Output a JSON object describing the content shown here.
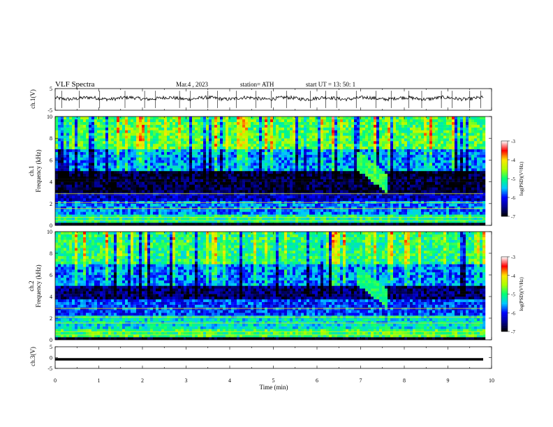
{
  "header": {
    "title": "VLF  Spectra",
    "date": "Mar.4  , 2023",
    "station": "station= ATH",
    "start": "start  UT  =   13: 50: 1"
  },
  "colorbar": {
    "label": "log(PSD)(V²/Hz)",
    "ticks": [
      "-3",
      "-4",
      "-5",
      "-6",
      "-7"
    ],
    "colors": [
      "#ffffff",
      "#ff0000",
      "#ffff00",
      "#00ff00",
      "#00ffff",
      "#0000ff",
      "#000000"
    ]
  },
  "chart_data": [
    {
      "type": "line",
      "name": "ch1-waveform",
      "ylabel": "ch.1(V)",
      "ylim": [
        -5,
        5
      ],
      "yticks": [
        "5",
        "-5"
      ],
      "xlim": [
        0,
        10
      ],
      "baseline_value": 0.5,
      "spike_times_min": [
        0.15,
        0.55,
        1.02,
        1.6,
        2.05,
        2.3,
        2.85,
        3.1,
        3.5,
        3.72,
        4.15,
        4.6,
        4.95,
        5.3,
        5.85,
        6.2,
        6.45,
        6.9,
        7.35,
        7.7,
        8.1,
        8.4,
        8.85,
        9.1,
        9.5,
        9.75
      ]
    },
    {
      "type": "heatmap",
      "name": "ch1-spectrogram",
      "ylabel": "ch.1\nFrequency  (kHz)",
      "ylim": [
        0,
        10
      ],
      "yticks": [
        "0",
        "2",
        "4",
        "6",
        "8",
        "10"
      ],
      "xlim": [
        0,
        10
      ],
      "log_psd_range": [
        -7,
        -3
      ],
      "bands": [
        {
          "f_low": 7.0,
          "f_high": 10.0,
          "log_psd": -4.8
        },
        {
          "f_low": 5.0,
          "f_high": 7.0,
          "log_psd": -5.6
        },
        {
          "f_low": 3.0,
          "f_high": 5.0,
          "log_psd": -6.8
        },
        {
          "f_low": 2.2,
          "f_high": 3.0,
          "log_psd": -6.3
        },
        {
          "f_low": 1.0,
          "f_high": 2.2,
          "log_psd": -5.7
        },
        {
          "f_low": 0.3,
          "f_high": 1.0,
          "log_psd": -5.1
        },
        {
          "f_low": 0.0,
          "f_high": 0.3,
          "log_psd": -7.0
        }
      ],
      "event": {
        "t_min": 6.9,
        "t_max": 7.6,
        "f_low": 3.8,
        "f_high": 6.0,
        "log_psd": -4.9
      }
    },
    {
      "type": "heatmap",
      "name": "ch2-spectrogram",
      "ylabel": "ch.2\nFrequency  (kHz)",
      "ylim": [
        0,
        10
      ],
      "yticks": [
        "0",
        "2",
        "4",
        "6",
        "8",
        "10"
      ],
      "xlim": [
        0,
        10
      ],
      "log_psd_range": [
        -7,
        -3
      ],
      "bands": [
        {
          "f_low": 7.0,
          "f_high": 10.0,
          "log_psd": -5.0
        },
        {
          "f_low": 5.0,
          "f_high": 7.0,
          "log_psd": -5.7
        },
        {
          "f_low": 3.8,
          "f_high": 5.0,
          "log_psd": -6.6
        },
        {
          "f_low": 2.2,
          "f_high": 3.8,
          "log_psd": -5.9
        },
        {
          "f_low": 1.0,
          "f_high": 2.2,
          "log_psd": -5.3
        },
        {
          "f_low": 0.2,
          "f_high": 1.0,
          "log_psd": -4.9
        },
        {
          "f_low": 0.0,
          "f_high": 0.2,
          "log_psd": -7.0
        }
      ],
      "event": {
        "t_min": 6.9,
        "t_max": 7.6,
        "f_low": 3.8,
        "f_high": 6.0,
        "log_psd": -5.0
      }
    },
    {
      "type": "line",
      "name": "ch3-waveform",
      "ylabel": "ch.3(V)",
      "ylim": [
        -5,
        5
      ],
      "yticks": [
        "5",
        "0",
        "-5"
      ],
      "xlim": [
        0,
        10
      ],
      "baseline_value": -0.8,
      "xlabel": "Time  (min)",
      "xticks": [
        "0",
        "1",
        "2",
        "3",
        "4",
        "5",
        "6",
        "7",
        "8",
        "9",
        "10"
      ]
    }
  ]
}
